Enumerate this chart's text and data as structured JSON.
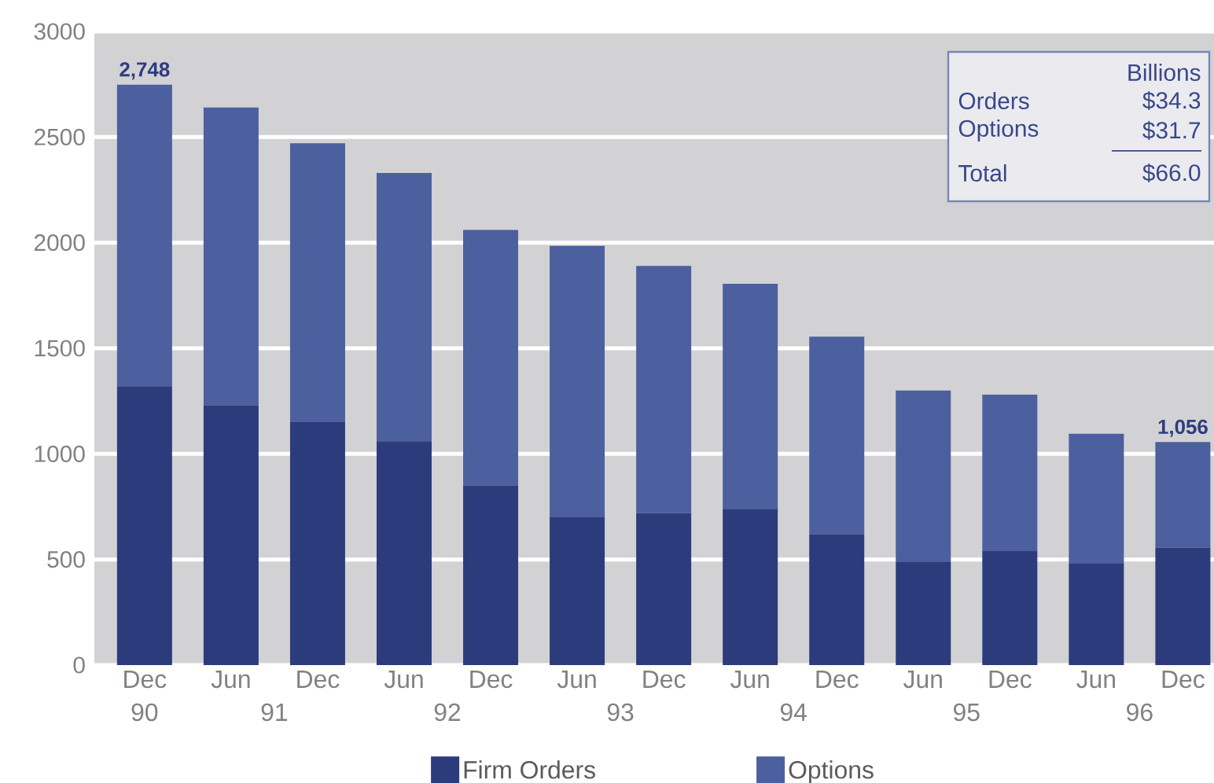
{
  "chart_data": {
    "type": "bar",
    "stacked": true,
    "categories": [
      "Dec",
      "Jun",
      "Dec",
      "Jun",
      "Dec",
      "Jun",
      "Dec",
      "Jun",
      "Dec",
      "Jun",
      "Dec",
      "Jun",
      "Dec"
    ],
    "series": [
      {
        "name": "Firm Orders",
        "color": "#2c3b7c",
        "values": [
          1320,
          1230,
          1150,
          1060,
          850,
          700,
          720,
          740,
          620,
          490,
          540,
          480,
          555
        ]
      },
      {
        "name": "Options",
        "color": "#4c5f9e",
        "values": [
          1428,
          1410,
          1320,
          1270,
          1210,
          1285,
          1170,
          1065,
          935,
          810,
          740,
          615,
          501
        ]
      }
    ],
    "totals": [
      "2,748",
      null,
      null,
      null,
      null,
      null,
      null,
      null,
      null,
      null,
      null,
      null,
      "1,056"
    ],
    "ylim": [
      0,
      3000
    ],
    "yticks": [
      0,
      500,
      1000,
      1500,
      2000,
      2500,
      3000
    ],
    "grid": "y",
    "legend": "bottom",
    "annotations": [
      "Billions",
      "Orders",
      "$34.3",
      "Options",
      "$31.7",
      "Total",
      "$66.0",
      "90",
      "91",
      "92",
      "93",
      "94",
      "95",
      "96"
    ]
  }
}
